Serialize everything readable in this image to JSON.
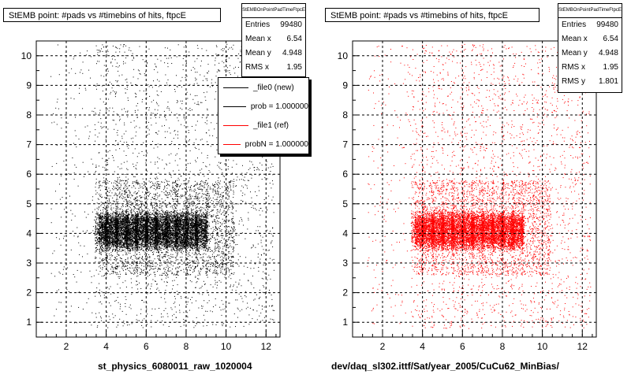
{
  "colors": {
    "left_points": "#000000",
    "right_points": "#ff0000",
    "frame": "#000000"
  },
  "chart_data": [
    {
      "type": "scatter",
      "title": "StEMB point: #pads vs #timebins of hits, ftpcE",
      "xlabel": "st_physics_6080011_raw_1020004",
      "ylabel": "",
      "xlim": [
        0.5,
        12.7
      ],
      "ylim": [
        0.5,
        10.5
      ],
      "xticks": [
        "2",
        "4",
        "6",
        "8",
        "10",
        "12"
      ],
      "yticks": [
        "1",
        "2",
        "3",
        "4",
        "5",
        "6",
        "7",
        "8",
        "9",
        "10"
      ],
      "grid": true,
      "point_color": "black",
      "stats": {
        "name": "StEMBOnPointPadTimeFtpcE",
        "rows": [
          {
            "label": "Entries",
            "value": "99480"
          },
          {
            "label": "Mean x",
            "value": "6.54"
          },
          {
            "label": "Mean y",
            "value": "4.948"
          },
          {
            "label": "RMS x",
            "value": "1.95"
          }
        ]
      },
      "legend": {
        "placement": "top-right",
        "entries": [
          {
            "label": "_file0 (new)",
            "color": "#000000"
          },
          {
            "label": "prob = 1.000000",
            "color": "#000000"
          },
          {
            "label": "_file1 (ref)",
            "color": "#ff0000"
          },
          {
            "label": "probN = 1.000000",
            "color": "#ff0000"
          }
        ]
      }
    },
    {
      "type": "scatter",
      "title": "StEMB point: #pads vs #timebins of hits, ftpcE",
      "xlabel": "dev/daq_sl302.ittf/Sat/year_2005/CuCu62_MinBias/",
      "ylabel": "",
      "xlim": [
        0.5,
        12.7
      ],
      "ylim": [
        0.5,
        10.5
      ],
      "xticks": [
        "2",
        "4",
        "6",
        "8",
        "10",
        "12"
      ],
      "yticks": [
        "1",
        "2",
        "3",
        "4",
        "5",
        "6",
        "7",
        "8",
        "9",
        "10"
      ],
      "grid": true,
      "point_color": "red",
      "stats": {
        "name": "StEMBOnPointPadTimeFtpcE",
        "rows": [
          {
            "label": "Entries",
            "value": "99480"
          },
          {
            "label": "Mean x",
            "value": "6.54"
          },
          {
            "label": "Mean y",
            "value": "4.948"
          },
          {
            "label": "RMS x",
            "value": "1.95"
          },
          {
            "label": "RMS y",
            "value": "1.801"
          }
        ]
      }
    }
  ]
}
